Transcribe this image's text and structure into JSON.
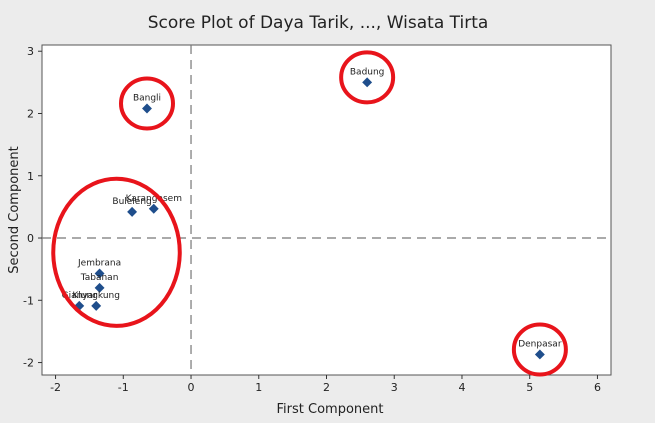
{
  "chart_data": {
    "type": "scatter",
    "title": "Score Plot of Daya Tarik, ..., Wisata Tirta",
    "xlabel": "First Component",
    "ylabel": "Second Component",
    "xlim": [
      -2.2,
      6.2
    ],
    "ylim": [
      -2.2,
      3.1
    ],
    "xticks": [
      -2,
      -1,
      0,
      1,
      2,
      3,
      4,
      5,
      6
    ],
    "yticks": [
      -2,
      -1,
      0,
      1,
      2,
      3
    ],
    "reference_lines": {
      "x": 0,
      "y": 0,
      "style": "dashed"
    },
    "grid": false,
    "marker_color": "#1f4e8c",
    "highlight_color": "#e8141b",
    "points": [
      {
        "label": "Badung",
        "x": 2.6,
        "y": 2.5
      },
      {
        "label": "Bangli",
        "x": -0.65,
        "y": 2.08
      },
      {
        "label": "Buleleng",
        "x": -0.87,
        "y": 0.42
      },
      {
        "label": "Karangasem",
        "x": -0.55,
        "y": 0.47
      },
      {
        "label": "Jembrana",
        "x": -1.35,
        "y": -0.57
      },
      {
        "label": "Tabanan",
        "x": -1.35,
        "y": -0.8
      },
      {
        "label": "Gianyar",
        "x": -1.65,
        "y": -1.09
      },
      {
        "label": "Klungkung",
        "x": -1.4,
        "y": -1.09
      },
      {
        "label": "Denpasar",
        "x": 5.15,
        "y": -1.87
      }
    ],
    "highlight_groups": [
      {
        "members": [
          "Badung"
        ]
      },
      {
        "members": [
          "Bangli"
        ]
      },
      {
        "members": [
          "Buleleng",
          "Karangasem",
          "Jembrana",
          "Tabanan",
          "Gianyar",
          "Klungkung"
        ]
      },
      {
        "members": [
          "Denpasar"
        ]
      }
    ]
  }
}
